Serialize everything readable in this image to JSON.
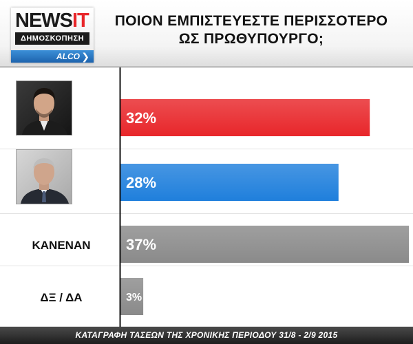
{
  "logo": {
    "brand_main": "NEWS",
    "brand_accent": "IT",
    "subtitle": "ΔΗΜΟΣΚΟΠΗΣΗ",
    "pollster": "ALCO",
    "chevron": "❯"
  },
  "title_lines": [
    "ΠΟΙΟΝ ΕΜΠΙΣΤΕΥΕΣΤΕ ΠΕΡΙΣΣΟΤΕΡΟ",
    "ΩΣ ΠΡΩΘΥΠΟΥΡΓΟ;"
  ],
  "chart_data": {
    "type": "bar",
    "orientation": "horizontal",
    "title": "ΠΟΙΟΝ ΕΜΠΙΣΤΕΥΕΣΤΕ ΠΕΡΙΣΣΟΤΕΡΟ ΩΣ ΠΡΩΘΥΠΟΥΡΓΟ;",
    "categories": [
      "",
      "",
      "ΚΑΝΕΝΑΝ",
      "ΔΞ / ΔΑ"
    ],
    "values": [
      32,
      28,
      37,
      3
    ],
    "value_labels": [
      "32%",
      "28%",
      "37%",
      "3%"
    ],
    "unit": "%",
    "xlim": [
      0,
      37
    ],
    "bar_colors": [
      "#e8262a",
      "#1f7fdc",
      "#8a8a8a",
      "#8a8a8a"
    ],
    "grid": false,
    "legend": "none"
  },
  "category_images": [
    "portrait-photo-man-dark-hair",
    "portrait-photo-man-grey-hair",
    null,
    null
  ],
  "footer": "ΚΑΤΑΓΡΑΦΗ ΤΑΣΕΩΝ ΤΗΣ ΧΡΟΝΙΚΗΣ ΠΕΡΙΟΔΟΥ 31/8 - 2/9 2015",
  "colors": {
    "accent_red": "#e8262a",
    "accent_blue": "#1f7fdc",
    "neutral_gray": "#8a8a8a",
    "footer_bg": "#2a2a2a"
  }
}
